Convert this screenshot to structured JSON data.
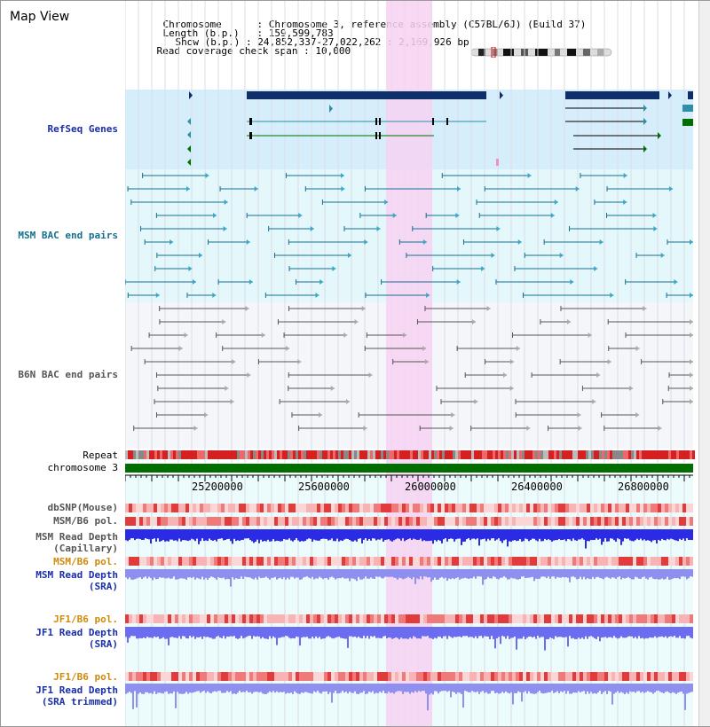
{
  "app": {
    "title": "Map View"
  },
  "header": {
    "chromosome_key": "Chromosome",
    "chromosome_value": "Chromosome 3, reference assembly (C57BL/6J) (Build 37)",
    "length_key": "Length (b.p.)",
    "length_value": "159,599,783",
    "show_key": "Show (b.p.)",
    "show_value": "24,852,337-27,022,262 : 2,169,926 bp",
    "coverage_key": "Read coverage check span",
    "coverage_value": "10,000"
  },
  "tracks": {
    "refseq": "RefSeq Genes",
    "msm_bac": "MSM BAC end pairs",
    "b6n_bac": "B6N BAC end pairs",
    "repeat": "Repeat",
    "chromosome": "chromosome 3",
    "dbsnp": "dbSNP(Mouse)",
    "msm_b6_pol": "MSM/B6 pol.",
    "msm_depth_cap_1": "MSM Read Depth",
    "msm_depth_cap_2": "(Capillary)",
    "msm_b6_pol_2": "MSM/B6 pol.",
    "msm_depth_sra_1": "MSM Read Depth",
    "msm_depth_sra_2": "(SRA)",
    "jf1_b6_pol": "JF1/B6 pol.",
    "jf1_depth_sra_1": "JF1 Read Depth",
    "jf1_depth_sra_2": "(SRA)",
    "jf1_b6_pol_2": "JF1/B6 pol.",
    "jf1_depth_trim_1": "JF1 Read Depth",
    "jf1_depth_trim_2": "(SRA trimmed)"
  },
  "ruler": {
    "ticks": [
      "25200000",
      "25600000",
      "26000000",
      "26400000",
      "26800000"
    ]
  },
  "colors": {
    "refseq_bg": "#d6eefb",
    "msm_bg": "#e4f8fb",
    "b6n_bg": "#f4f6fa",
    "highlight": "#f7d2f2",
    "chromosome_bar": "#006e00",
    "repeat_red": "#d42020",
    "depth_blue": "#2b2be6",
    "depth_light": "#8f8ff0"
  }
}
